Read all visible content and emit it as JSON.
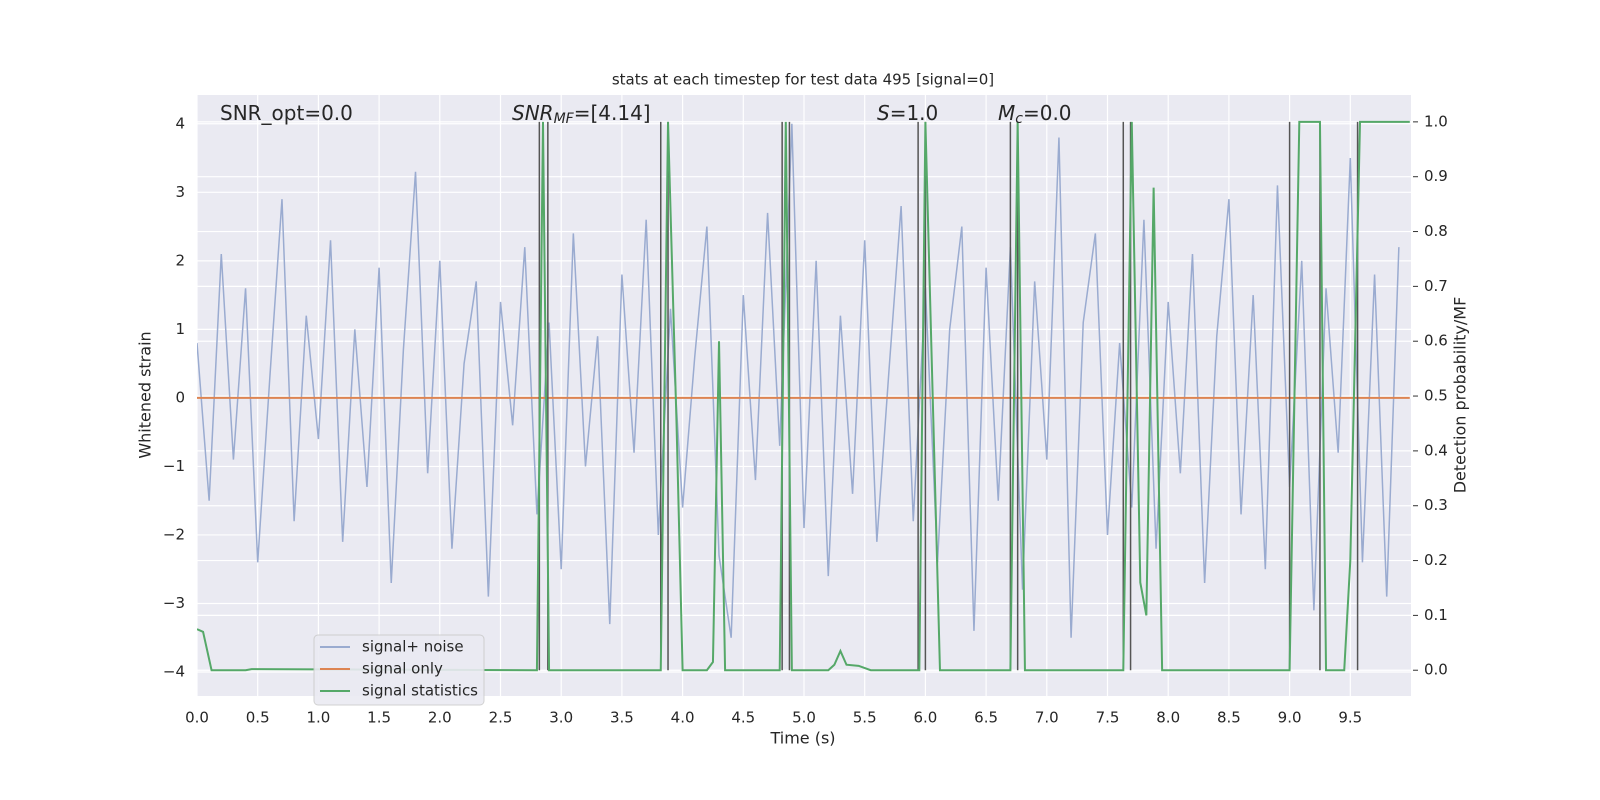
{
  "chart_data": {
    "type": "line",
    "title": "stats at each timestep for test data 495 [signal=0]",
    "xlabel": "Time (s)",
    "ylabel": "Whitened strain",
    "y2label": "Detection probability/MF",
    "annotations": [
      {
        "base": "SNR_opt=0.0"
      },
      {
        "base": "SNR",
        "sub": "MF",
        "tail": "=[4.14]"
      },
      {
        "base": "S",
        "tail": "=1.0"
      },
      {
        "base": "M",
        "sub": "c",
        "tail": "=0.0"
      }
    ],
    "xlim": [
      0,
      10
    ],
    "xticks": [
      {
        "value": 0,
        "label": "0.0"
      },
      0.5,
      {
        "value": 1,
        "label": "1.0"
      },
      1.5,
      {
        "value": 2,
        "label": "2.0"
      },
      2.5,
      {
        "value": 3,
        "label": "3.0"
      },
      3.5,
      {
        "value": 4,
        "label": "4.0"
      },
      4.5,
      {
        "value": 5,
        "label": "5.0"
      },
      5.5,
      {
        "value": 6,
        "label": "6.0"
      },
      6.5,
      {
        "value": 7,
        "label": "7.0"
      },
      7.5,
      {
        "value": 8,
        "label": "8.0"
      },
      8.5,
      {
        "value": 9,
        "label": "9.0"
      },
      9.5
    ],
    "ylim": [
      -4.35,
      4.42
    ],
    "yticks": [
      {
        "value": -4,
        "label": "−4"
      },
      {
        "value": -3,
        "label": "−3"
      },
      {
        "value": -2,
        "label": "−2"
      },
      {
        "value": -1,
        "label": "−1"
      },
      0,
      1,
      2,
      3,
      4
    ],
    "y2lim": [
      -0.047,
      1.049
    ],
    "y2ticks": [
      {
        "value": 0,
        "label": "0.0"
      },
      0.1,
      0.2,
      0.3,
      0.4,
      0.5,
      0.6,
      0.7,
      0.8,
      0.9,
      {
        "value": 1,
        "label": "1.0"
      }
    ],
    "grid": true,
    "legend": "lower left",
    "series": [
      {
        "name": "signal+ noise",
        "color": "#9aabd0",
        "x": [
          0,
          0.1,
          0.2,
          0.3,
          0.4,
          0.5,
          0.6,
          0.7,
          0.8,
          0.9,
          1,
          1.1,
          1.2,
          1.3,
          1.4,
          1.5,
          1.6,
          1.7,
          1.8,
          1.9,
          2,
          2.1,
          2.2,
          2.3,
          2.4,
          2.5,
          2.6,
          2.7,
          2.8,
          2.9,
          3,
          3.1,
          3.2,
          3.3,
          3.4,
          3.5,
          3.6,
          3.7,
          3.8,
          3.9,
          4,
          4.1,
          4.2,
          4.3,
          4.4,
          4.5,
          4.6,
          4.7,
          4.8,
          4.9,
          5,
          5.1,
          5.2,
          5.3,
          5.4,
          5.5,
          5.6,
          5.7,
          5.8,
          5.9,
          6,
          6.1,
          6.2,
          6.3,
          6.4,
          6.5,
          6.6,
          6.7,
          6.8,
          6.9,
          7,
          7.1,
          7.2,
          7.3,
          7.4,
          7.5,
          7.6,
          7.7,
          7.8,
          7.9,
          8,
          8.1,
          8.2,
          8.3,
          8.4,
          8.5,
          8.6,
          8.7,
          8.8,
          8.9,
          9,
          9.1,
          9.2,
          9.3,
          9.4,
          9.5,
          9.6,
          9.7,
          9.8,
          9.9
        ],
        "values": [
          0.8,
          -1.5,
          2.1,
          -0.9,
          1.6,
          -2.4,
          0.3,
          2.9,
          -1.8,
          1.2,
          -0.6,
          2.3,
          -2.1,
          1.0,
          -1.3,
          1.9,
          -2.7,
          0.7,
          3.3,
          -1.1,
          2.0,
          -2.2,
          0.5,
          1.7,
          -2.9,
          1.4,
          -0.4,
          2.2,
          -1.7,
          1.1,
          -2.5,
          2.4,
          -1.0,
          0.9,
          -3.3,
          1.8,
          -0.8,
          2.6,
          -2.0,
          1.3,
          -1.6,
          0.6,
          2.5,
          -2.3,
          -3.5,
          1.5,
          -1.2,
          2.7,
          -0.7,
          4.0,
          -1.9,
          2.0,
          -2.6,
          1.2,
          -1.4,
          2.3,
          -2.1,
          0.4,
          2.8,
          -1.8,
          1.6,
          -2.4,
          1.0,
          2.5,
          -3.4,
          1.9,
          -1.5,
          2.2,
          -2.8,
          1.7,
          -0.9,
          3.8,
          -3.5,
          1.1,
          2.4,
          -2.0,
          0.8,
          -1.6,
          2.6,
          -2.2,
          1.4,
          -1.1,
          2.1,
          -2.7,
          0.9,
          2.9,
          -1.7,
          1.5,
          -2.5,
          3.1,
          -1.3,
          2.0,
          -3.1,
          1.6,
          -0.8,
          3.5,
          -2.4,
          1.8,
          -2.9,
          2.2
        ]
      },
      {
        "name": "signal only",
        "color": "#dd8452",
        "x": [
          0,
          9.99
        ],
        "values": [
          0,
          0
        ]
      },
      {
        "name": "signal statistics",
        "color": "#55a868",
        "axis": "y2",
        "x": [
          0,
          0.05,
          0.12,
          0.4,
          0.45,
          2.8,
          2.85,
          2.9,
          3.82,
          3.88,
          3.95,
          4.0,
          4.2,
          4.25,
          4.3,
          4.35,
          4.8,
          4.85,
          4.9,
          5.2,
          5.25,
          5.3,
          5.35,
          5.45,
          5.55,
          5.95,
          6.0,
          6.12,
          6.7,
          6.76,
          6.82,
          7.63,
          7.7,
          7.77,
          7.82,
          7.88,
          7.95,
          9.0,
          9.08,
          9.25,
          9.3,
          9.45,
          9.5,
          9.58,
          9.99
        ],
        "values": [
          0.075,
          0.07,
          0,
          0,
          0.002,
          0,
          1.0,
          0,
          0,
          1.0,
          0.45,
          0,
          0,
          0.015,
          0.6,
          0,
          0,
          1.0,
          0,
          0,
          0.01,
          0.035,
          0.01,
          0.008,
          0,
          0,
          1.0,
          0,
          0,
          1.0,
          0,
          0,
          1.0,
          0.16,
          0.1,
          0.88,
          0,
          0,
          1.0,
          1.0,
          0,
          0,
          0.2,
          1.0,
          1.0
        ]
      }
    ],
    "vlines": {
      "color": "#555555",
      "axis": "y2",
      "ymin": 0,
      "ymax": 1,
      "x": [
        2.82,
        2.89,
        3.82,
        3.88,
        4.82,
        4.88,
        5.94,
        6.0,
        6.7,
        6.76,
        7.63,
        7.69,
        9.0,
        9.25,
        9.56
      ]
    }
  }
}
